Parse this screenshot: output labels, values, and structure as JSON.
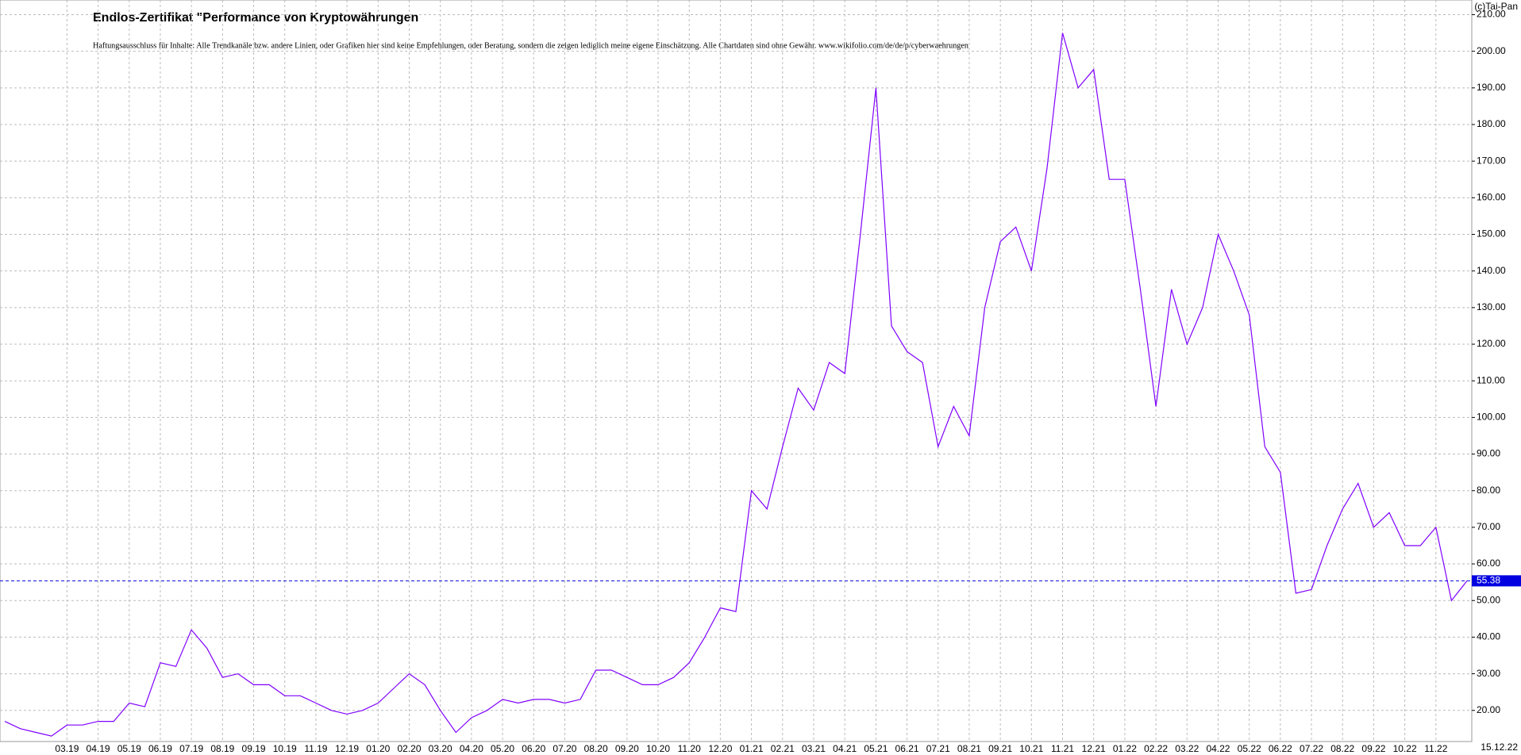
{
  "chart_data": {
    "type": "line",
    "title": "Endlos-Zertifikat \"Performance von Kryptowährungen",
    "subtitle": "Haftungsausschluss für Inhalte: Alle Trendkanäle bzw. andere Linien, oder Grafiken hier sind keine Empfehlungen, oder Beratung, sondern die zeigen lediglich meine eigene Einschätzung. Alle Chartdaten sind ohne Gewähr.  www.wikifolio.com/de/de/p/cyberwaehrungen",
    "copyright": "(c)Tai-Pan",
    "date_label": "15.12.22",
    "color": "#7f00ff",
    "current_line_color": "#0000e0",
    "grid": true,
    "categories": [
      null,
      null,
      null,
      null,
      "03.19",
      null,
      "04.19",
      null,
      "05.19",
      null,
      "06.19",
      null,
      "07.19",
      null,
      "08.19",
      null,
      "09.19",
      null,
      "10.19",
      null,
      "11.19",
      null,
      "12.19",
      null,
      "01.20",
      null,
      "02.20",
      null,
      "03.20",
      null,
      "04.20",
      null,
      "05.20",
      null,
      "06.20",
      null,
      "07.20",
      null,
      "08.20",
      null,
      "09.20",
      null,
      "10.20",
      null,
      "11.20",
      null,
      "12.20",
      null,
      "01.21",
      null,
      "02.21",
      null,
      "03.21",
      null,
      "04.21",
      null,
      "05.21",
      null,
      "06.21",
      null,
      "07.21",
      null,
      "08.21",
      null,
      "09.21",
      null,
      "10.21",
      null,
      "11.21",
      null,
      "12.21",
      null,
      "01.22",
      null,
      "02.22",
      null,
      "03.22",
      null,
      "04.22",
      null,
      "05.22",
      null,
      "06.22",
      null,
      "07.22",
      null,
      "08.22",
      null,
      "09.22",
      null,
      "10.22",
      null,
      "11.22",
      null,
      null
    ],
    "values": [
      17,
      15,
      14,
      13,
      16,
      16,
      17,
      17,
      22,
      21,
      33,
      32,
      42,
      37,
      29,
      30,
      27,
      27,
      24,
      24,
      22,
      20,
      19,
      20,
      22,
      26,
      30,
      27,
      20,
      14,
      18,
      20,
      23,
      22,
      23,
      23,
      22,
      23,
      31,
      31,
      29,
      27,
      27,
      29,
      33,
      40,
      48,
      47,
      80,
      75,
      92,
      108,
      102,
      115,
      112,
      150,
      190,
      125,
      118,
      115,
      92,
      103,
      95,
      130,
      148,
      152,
      140,
      168,
      205,
      190,
      195,
      165,
      165,
      135,
      103,
      135,
      120,
      130,
      150,
      140,
      128,
      92,
      85,
      52,
      53,
      65,
      75,
      82,
      70,
      74,
      65,
      65,
      70,
      50,
      55.38
    ],
    "ylim": [
      11.5,
      214
    ],
    "yticks": [
      {
        "value": 20,
        "label": "20.00"
      },
      {
        "value": 30,
        "label": "30.00"
      },
      {
        "value": 40,
        "label": "40.00"
      },
      {
        "value": 50,
        "label": "50.00"
      },
      {
        "value": 60,
        "label": "60.00"
      },
      {
        "value": 70,
        "label": "70.00"
      },
      {
        "value": 80,
        "label": "80.00"
      },
      {
        "value": 90,
        "label": "90.00"
      },
      {
        "value": 100,
        "label": "100.00"
      },
      {
        "value": 110,
        "label": "110.00"
      },
      {
        "value": 120,
        "label": "120.00"
      },
      {
        "value": 130,
        "label": "130.00"
      },
      {
        "value": 140,
        "label": "140.00"
      },
      {
        "value": 150,
        "label": "150.00"
      },
      {
        "value": 160,
        "label": "160.00"
      },
      {
        "value": 170,
        "label": "170.00"
      },
      {
        "value": 180,
        "label": "180.00"
      },
      {
        "value": 190,
        "label": "190.00"
      },
      {
        "value": 200,
        "label": "200.00"
      },
      {
        "value": 210,
        "label": "210.00"
      }
    ]
  }
}
